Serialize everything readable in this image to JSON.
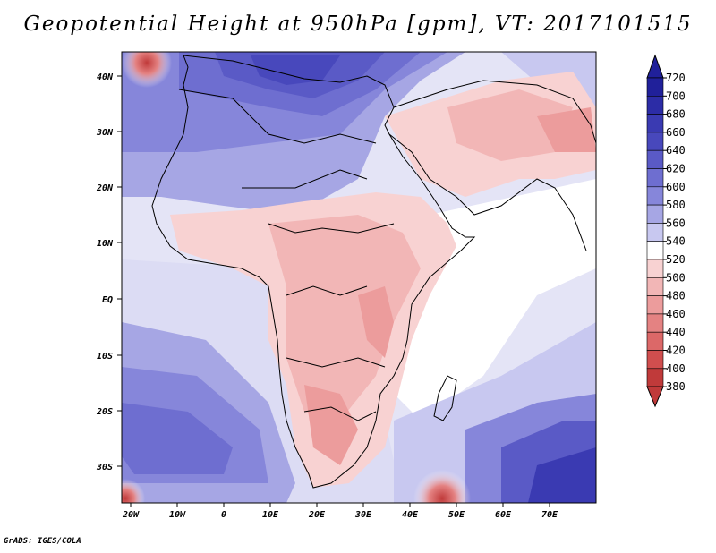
{
  "title": "Geopotential Height at 950hPa [gpm], VT: 2017101515",
  "credit": "GrADS: IGES/COLA",
  "lat_labels": [
    "40N",
    "30N",
    "20N",
    "10N",
    "EQ",
    "10S",
    "20S",
    "30S"
  ],
  "lon_labels": [
    "20W",
    "10W",
    "0",
    "10E",
    "20E",
    "30E",
    "40E",
    "50E",
    "60E",
    "70E"
  ],
  "colorbar": {
    "levels": [
      720,
      700,
      680,
      660,
      640,
      620,
      600,
      580,
      560,
      540,
      520,
      500,
      480,
      460,
      440,
      420,
      400,
      380
    ],
    "colors": [
      "#20209a",
      "#2c2ca6",
      "#3a3ab2",
      "#4848bc",
      "#5a5ac6",
      "#6e6ed0",
      "#8686da",
      "#a6a6e4",
      "#c8c8f0",
      "#ffffff",
      "#f8d2d2",
      "#f2b6b6",
      "#ec9c9c",
      "#e48282",
      "#dc6868",
      "#d04e4e",
      "#c03a3a"
    ]
  },
  "map_data": {
    "type": "filled-contour",
    "variable": "Geopotential Height at 950hPa",
    "units": "gpm",
    "valid_time": "2017101515",
    "lon_range": [
      -22,
      80
    ],
    "lat_range": [
      -37,
      45
    ]
  }
}
